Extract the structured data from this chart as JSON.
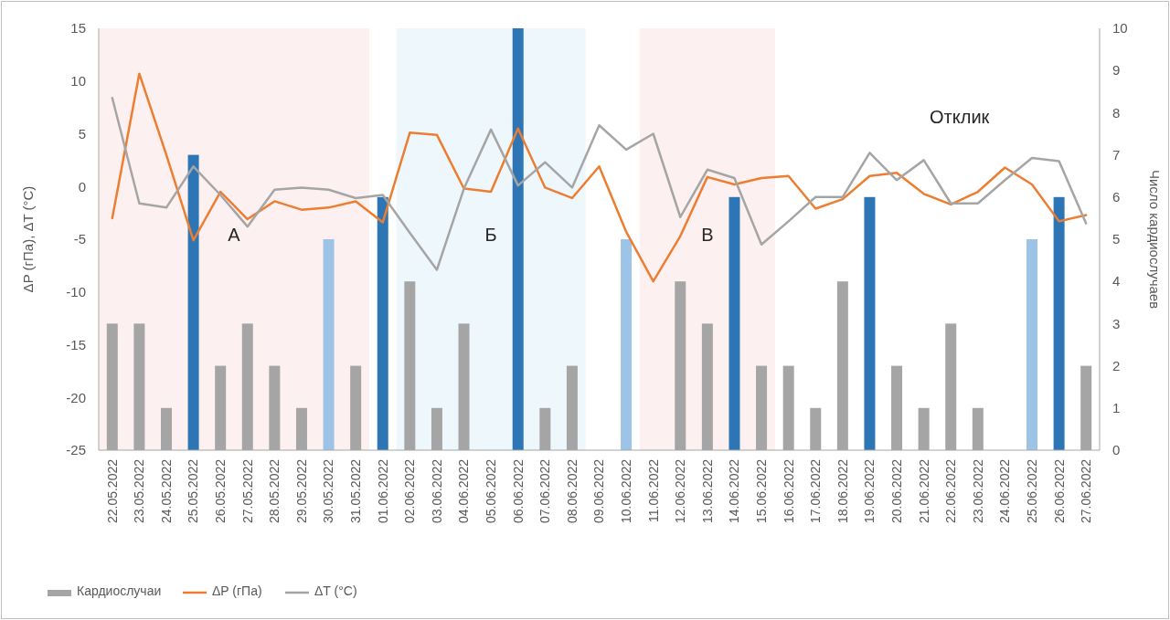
{
  "chart_data": {
    "type": "bar",
    "ylabel": "ΔP (гПа), ΔT (°C)",
    "y2label": "Число кардиослучаев",
    "categories": [
      "22.05.2022",
      "23.05.2022",
      "24.05.2022",
      "25.05.2022",
      "26.05.2022",
      "27.05.2022",
      "28.05.2022",
      "29.05.2022",
      "30.05.2022",
      "31.05.2022",
      "01.06.2022",
      "02.06.2022",
      "03.06.2022",
      "04.06.2022",
      "05.06.2022",
      "06.06.2022",
      "07.06.2022",
      "08.06.2022",
      "09.06.2022",
      "10.06.2022",
      "11.06.2022",
      "12.06.2022",
      "13.06.2022",
      "14.06.2022",
      "15.06.2022",
      "16.06.2022",
      "17.06.2022",
      "18.06.2022",
      "19.06.2022",
      "20.06.2022",
      "21.06.2022",
      "22.06.2022",
      "23.06.2022",
      "24.06.2022",
      "25.06.2022",
      "26.06.2022",
      "27.06.2022"
    ],
    "series": [
      {
        "name": "Кардиослучаи",
        "axis": "y2",
        "color": "#a5a5a5",
        "colors": [
          "#a5a5a5",
          "#a5a5a5",
          "#a5a5a5",
          "#2e75b6",
          "#a5a5a5",
          "#a5a5a5",
          "#a5a5a5",
          "#a5a5a5",
          "#9dc3e6",
          "#a5a5a5",
          "#2e75b6",
          "#a5a5a5",
          "#a5a5a5",
          "#a5a5a5",
          "#a5a5a5",
          "#2e75b6",
          "#a5a5a5",
          "#a5a5a5",
          "#a5a5a5",
          "#9dc3e6",
          "#a5a5a5",
          "#a5a5a5",
          "#a5a5a5",
          "#2e75b6",
          "#a5a5a5",
          "#a5a5a5",
          "#a5a5a5",
          "#a5a5a5",
          "#2e75b6",
          "#a5a5a5",
          "#a5a5a5",
          "#a5a5a5",
          "#a5a5a5",
          "#a5a5a5",
          "#9dc3e6",
          "#2e75b6",
          "#a5a5a5"
        ],
        "values": [
          3,
          3,
          1,
          7,
          2,
          3,
          2,
          1,
          5,
          2,
          6,
          4,
          1,
          3,
          0,
          10,
          1,
          2,
          0,
          5,
          0,
          4,
          3,
          6,
          2,
          2,
          1,
          4,
          6,
          2,
          1,
          3,
          1,
          0,
          5,
          6,
          2
        ]
      },
      {
        "name": "ΔP (гПа)",
        "type": "line",
        "color": "#ed7d31",
        "values": [
          -3,
          10.7,
          3,
          -5.1,
          -0.5,
          -3.1,
          -1.4,
          -2.2,
          -2,
          -1.4,
          -3.4,
          5.1,
          4.9,
          -0.2,
          -0.5,
          5.5,
          -0.1,
          -1.1,
          1.9,
          -4.3,
          -9,
          -4.7,
          0.9,
          0.2,
          0.8,
          1,
          -2.1,
          -1.2,
          1,
          1.3,
          -0.7,
          -1.7,
          -0.5,
          1.8,
          0.2,
          -3.3,
          -2.7
        ]
      },
      {
        "name": "ΔT (°C)",
        "type": "line",
        "color": "#a5a5a5",
        "values": [
          8.4,
          -1.6,
          -2,
          1.9,
          -0.8,
          -3.8,
          -0.3,
          -0.1,
          -0.3,
          -1.1,
          -0.8,
          -4.4,
          -7.9,
          -0.2,
          5.4,
          0.1,
          2.3,
          -0.1,
          5.8,
          3.5,
          5,
          -2.9,
          1.6,
          0.8,
          -5.5,
          -3.3,
          -1,
          -1,
          3.2,
          0.6,
          2.5,
          -1.6,
          -1.6,
          0.6,
          2.7,
          2.4,
          -3.5
        ]
      }
    ],
    "ylim": [
      -25,
      15
    ],
    "yticks": [
      -25,
      -20,
      -15,
      -10,
      -5,
      0,
      5,
      10,
      15
    ],
    "y2lim": [
      0,
      10
    ],
    "y2ticks": [
      0,
      1,
      2,
      3,
      4,
      5,
      6,
      7,
      8,
      9,
      10
    ],
    "bands": [
      {
        "axis": "x",
        "from": "22.05.2022",
        "to": "31.05.2022",
        "color": "#fdf0f0",
        "label": "А"
      },
      {
        "axis": "x",
        "from": "02.06.2022",
        "to": "08.06.2022",
        "color": "#eef8fc",
        "label": "Б"
      },
      {
        "axis": "x",
        "from": "11.06.2022",
        "to": "15.06.2022",
        "color": "#fdf0f0",
        "label": "В"
      }
    ],
    "annotations": [
      "Отклик"
    ],
    "legend": "bottom",
    "grid": false,
    "line_style": "solid",
    "marker": "none"
  }
}
